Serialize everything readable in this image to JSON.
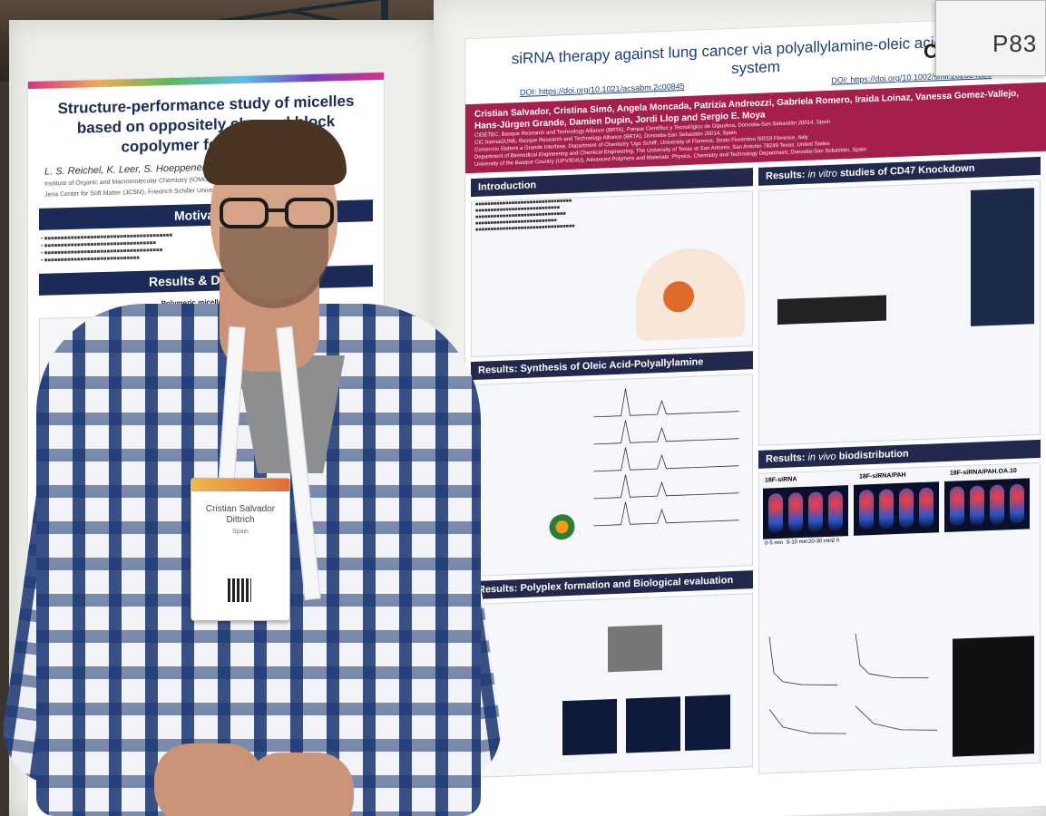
{
  "scene": {
    "type": "photo",
    "subject": "conference poster session"
  },
  "left_poster": {
    "title": "Structure-performance study of micelles based on oppositely charged block copolymer for applicati",
    "authors": "L. S. Reichel, K. Leer, S. Hoeppener, A. Traeger",
    "institutions": [
      "Institute of Organic and Macromolecular Chemistry (IOMC)",
      "Jena Center for Soft Matter (JCSM), Friedrich Schiller University Jena, Germany"
    ],
    "section_motivation": "Motivation",
    "section_results": "Results & Discussi",
    "subheading": "Polymeric micelles library"
  },
  "right_poster": {
    "title": "siRNA therapy against lung cancer via polyallylamine-oleic acid delivery system",
    "doi_1": "DOI: https://doi.org/10.1021/acsabm.2c00845",
    "doi_2": "DOI: https://doi.org/10.1002/smll.202304326",
    "authors": "Cristian Salvador, Cristina Simó, Angela Moncada, Patrizia Andreozzi, Gabriela Romero, Iraida Loinaz, Vanessa Gomez-Vallejo, Hans-Jürgen Grande, Damien Dupin, Jordi Llop and Sergio E. Moya",
    "affiliations": [
      "CIDETEC, Basque Research and Technology Alliance (BRTA), Parque Científico y Tecnológico de Gipuzkoa, Donostia-San Sebastián 20014, Spain",
      "CIC biomaGUNE, Basque Research and Technology Alliance (BRTA), Donostia-San Sebastián 20014, Spain",
      "Consorzio Sistemi a Grande Interfase, Department of Chemistry 'Ugo Schiff', University of Florence, Sesto Fiorentino 50019 Florence, Italy",
      "Department of Biomedical Engineering and Chemical Engineering, The University of Texas at San Antonio, San Antonio 78249 Texas, United States",
      "University of the Basque Country (UPV/EHU), Advanced Polymers and Materials: Physics, Chemistry and Technology Department, Donostia-San Sebastián, Spain"
    ],
    "section_intro": "Introduction",
    "section_synthesis": "Results: Synthesis of Oleic Acid-Polyallylamine",
    "section_polyplex": "Results: Polyplex formation and Biological evaluation",
    "section_knockdown_prefix": "Results:",
    "section_knockdown_em": "in vitro",
    "section_knockdown_suffix": "studies of CD47 Knockdown",
    "section_biodist_prefix": "Results:",
    "section_biodist_em": "in vivo",
    "section_biodist_suffix": "biodistribution",
    "biodist_groups": [
      "18F-siRNA",
      "18F-siRNA/PAH",
      "18F-siRNA/PAH.OA.10"
    ],
    "time_labels": [
      "0-5 min",
      "5-10 min",
      "20-30 min",
      "2 h"
    ]
  },
  "poster_number": "P83",
  "logo_fragment": "C",
  "badge": {
    "name": "Cristian Salvador Dittrich",
    "country": "Spain"
  },
  "colors": {
    "right_band": "#a51f4d",
    "section_header": "#23294d",
    "left_header": "#1b2a56",
    "shirt_blue": "#183470"
  }
}
